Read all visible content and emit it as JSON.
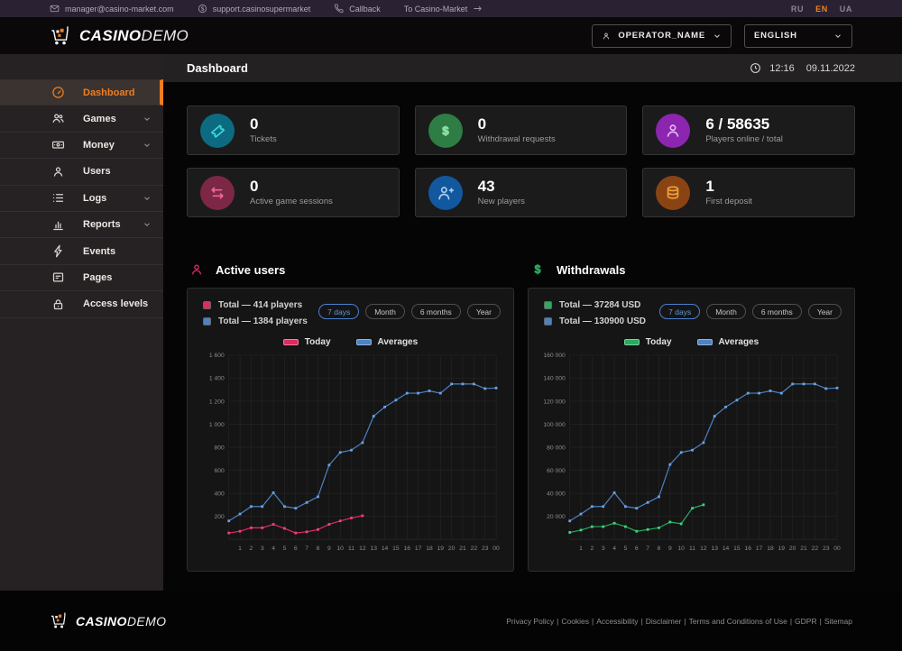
{
  "topbar": {
    "email": "manager@casino-market.com",
    "skype": "support.casinosupermarket",
    "callback": "Callback",
    "market_link": "To Casino-Market",
    "languages": [
      {
        "label": "RU",
        "active": false
      },
      {
        "label": "EN",
        "active": true
      },
      {
        "label": "UA",
        "active": false
      }
    ],
    "active_lang_color": "#f0821e"
  },
  "header": {
    "logo_bold": "CASINO",
    "logo_light": "DEMO",
    "operator": "OPERATOR_NAME",
    "language": "ENGLISH"
  },
  "page": {
    "title": "Dashboard",
    "time": "12:16",
    "date": "09.11.2022"
  },
  "sidebar": {
    "accent_color": "#ef7d21",
    "items": [
      {
        "label": "Dashboard",
        "icon": "gauge-icon",
        "active": true,
        "expandable": false
      },
      {
        "label": "Games",
        "icon": "people-icon",
        "active": false,
        "expandable": true
      },
      {
        "label": "Money",
        "icon": "banknote-icon",
        "active": false,
        "expandable": true
      },
      {
        "label": "Users",
        "icon": "user-icon",
        "active": false,
        "expandable": false
      },
      {
        "label": "Logs",
        "icon": "list-icon",
        "active": false,
        "expandable": true
      },
      {
        "label": "Reports",
        "icon": "bar-chart-icon",
        "active": false,
        "expandable": true
      },
      {
        "label": "Events",
        "icon": "lightning-icon",
        "active": false,
        "expandable": false
      },
      {
        "label": "Pages",
        "icon": "page-icon",
        "active": false,
        "expandable": false
      },
      {
        "label": "Access levels",
        "icon": "lock-icon",
        "active": false,
        "expandable": false
      }
    ]
  },
  "stats": {
    "cards": [
      {
        "value": "0",
        "label": "Tickets",
        "icon": "ticket-icon",
        "circle_color": "#0c6b80",
        "icon_color": "#39d8e0"
      },
      {
        "value": "0",
        "label": "Withdrawal requests",
        "icon": "dollar-icon",
        "circle_color": "#2e7d44",
        "icon_color": "#8ee0a8"
      },
      {
        "value": "6 / 58635",
        "label": "Players online / total",
        "icon": "player-icon",
        "circle_color": "#8c25b0",
        "icon_color": "#e3b7f2"
      },
      {
        "value": "0",
        "label": "Active game sessions",
        "icon": "swap-arrows-icon",
        "circle_color": "#7c2746",
        "icon_color": "#f2649a"
      },
      {
        "value": "43",
        "label": "New players",
        "icon": "user-plus-icon",
        "circle_color": "#11589f",
        "icon_color": "#a8cdf2"
      },
      {
        "value": "1",
        "label": "First deposit",
        "icon": "coins-icon",
        "circle_color": "#8a4413",
        "icon_color": "#f2a23c"
      }
    ]
  },
  "chart_data": [
    {
      "type": "line",
      "title": "Active users",
      "title_icon": "player-icon",
      "title_color": "#e22a60",
      "totals": [
        {
          "label": "Total — 414 players",
          "color": "#e22a60"
        },
        {
          "label": "Total — 1384 players",
          "color": "#4d82c4"
        }
      ],
      "range_buttons": [
        "7 days",
        "Month",
        "6 months",
        "Year"
      ],
      "active_range": "7 days",
      "legend_position": "top-center",
      "legend": [
        {
          "name": "Today",
          "color": "#e22a60"
        },
        {
          "name": "Averages",
          "color": "#4d82c4"
        }
      ],
      "grid": true,
      "x_labels": [
        "",
        "1",
        "2",
        "3",
        "4",
        "5",
        "6",
        "7",
        "8",
        "9",
        "10",
        "11",
        "12",
        "13",
        "14",
        "15",
        "16",
        "17",
        "18",
        "19",
        "20",
        "21",
        "22",
        "23",
        "00"
      ],
      "ylim": [
        0,
        1600
      ],
      "y_ticks": [
        200,
        400,
        600,
        800,
        1000,
        1200,
        1400,
        1600
      ],
      "y_tick_labels": [
        "200",
        "400",
        "600",
        "800",
        "1 000",
        "1 200",
        "1 400",
        "1 600"
      ],
      "series": [
        {
          "name": "Averages",
          "color": "#4d82c4",
          "marker_color": "#6ba3e8",
          "values": [
            160,
            220,
            285,
            285,
            405,
            285,
            270,
            320,
            370,
            645,
            755,
            775,
            840,
            1070,
            1150,
            1210,
            1270,
            1270,
            1290,
            1270,
            1350,
            1350,
            1350,
            1310,
            1315
          ]
        },
        {
          "name": "Today",
          "color": "#e22a60",
          "marker_color": "#f0437a",
          "values": [
            55,
            70,
            100,
            100,
            130,
            95,
            55,
            65,
            85,
            130,
            160,
            185,
            205
          ]
        }
      ]
    },
    {
      "type": "line",
      "title": "Withdrawals",
      "title_icon": "dollar-icon",
      "title_color": "#2aab5e",
      "totals": [
        {
          "label": "Total — 37284 USD",
          "color": "#2aab5e"
        },
        {
          "label": "Total — 130900 USD",
          "color": "#4d82c4"
        }
      ],
      "range_buttons": [
        "7 days",
        "Month",
        "6 months",
        "Year"
      ],
      "active_range": "7 days",
      "legend_position": "top-center",
      "legend": [
        {
          "name": "Today",
          "color": "#2aab5e"
        },
        {
          "name": "Averages",
          "color": "#4d82c4"
        }
      ],
      "grid": true,
      "x_labels": [
        "",
        "1",
        "2",
        "3",
        "4",
        "5",
        "6",
        "7",
        "8",
        "9",
        "10",
        "11",
        "12",
        "13",
        "14",
        "15",
        "16",
        "17",
        "18",
        "19",
        "20",
        "21",
        "22",
        "23",
        "00"
      ],
      "ylim": [
        0,
        160000
      ],
      "y_ticks": [
        20000,
        40000,
        60000,
        80000,
        100000,
        120000,
        140000,
        160000
      ],
      "y_tick_labels": [
        "20 000",
        "40 000",
        "60 000",
        "80 000",
        "100 000",
        "120 000",
        "140 000",
        "160 000"
      ],
      "series": [
        {
          "name": "Averages",
          "color": "#4d82c4",
          "marker_color": "#6ba3e8",
          "values": [
            16000,
            22000,
            28500,
            28500,
            40500,
            28500,
            27000,
            32000,
            37000,
            65000,
            75500,
            77500,
            84000,
            107000,
            115000,
            121000,
            127000,
            127000,
            129000,
            127000,
            135000,
            135000,
            135000,
            131000,
            131500
          ]
        },
        {
          "name": "Today",
          "color": "#2aab5e",
          "marker_color": "#3fd47f",
          "values": [
            6000,
            8000,
            11000,
            11000,
            14000,
            11000,
            7000,
            8500,
            10000,
            15000,
            13500,
            27000,
            30000
          ]
        }
      ]
    }
  ],
  "chart_style": {
    "grid_color": "#2b2b2b",
    "tick_color": "#8d8d8d"
  },
  "footer": {
    "logo_bold": "CASINO",
    "logo_light": "DEMO",
    "links": [
      "Privacy Policy",
      "Cookies",
      "Accessibility",
      "Disclaimer",
      "Terms and Conditions of Use",
      "GDPR",
      "Sitemap"
    ]
  }
}
